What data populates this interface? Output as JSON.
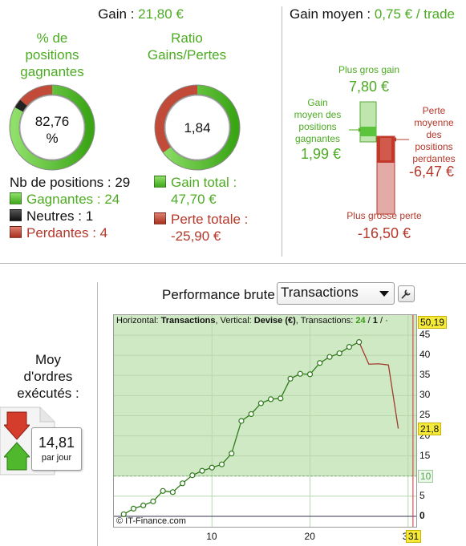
{
  "summary": {
    "gain_label": "Gain : ",
    "gain_value": "21,80 €",
    "avg_gain_label": "Gain moyen : ",
    "avg_gain_value": "0,75 € / trade"
  },
  "win_pct": {
    "title_lines": [
      "% de",
      "positions",
      "gagnantes"
    ],
    "value_lines": [
      "82,76",
      "%"
    ],
    "fraction": 0.8276,
    "neutral_fraction": 0.0345
  },
  "ratio": {
    "title_lines": [
      "Ratio",
      "Gains/Pertes"
    ],
    "value": "1,84",
    "gain_fraction": 0.648
  },
  "positions": {
    "count_label": "Nb de positions : 29",
    "winners": "Gagnantes : 24",
    "neutral": "Neutres : 1",
    "losers": "Perdantes : 4"
  },
  "totals": {
    "gain_label": "Gain total :",
    "gain_value": "47,70 €",
    "loss_label": "Perte totale :",
    "loss_value": "-25,90 €"
  },
  "bars": {
    "best_gain_label": "Plus gros gain",
    "best_gain_value": "7,80 €",
    "avg_win_lines": [
      "Gain",
      "moyen des",
      "positions",
      "gagnantes"
    ],
    "avg_win_value": "1,99 €",
    "avg_loss_lines": [
      "Perte",
      "moyenne",
      "des",
      "positions",
      "perdantes"
    ],
    "avg_loss_value": "-6,47 €",
    "worst_loss_label": "Plus grosse perte",
    "worst_loss_value": "-16,50 €"
  },
  "orders": {
    "title_lines": [
      "Moy",
      "d'ordres",
      "exécutés :"
    ],
    "value": "14,81",
    "unit": "par jour"
  },
  "performance": {
    "title": "Performance brute",
    "selected": "Transactions",
    "header_h": "Horizontal: ",
    "header_h_val": "Transactions",
    "header_v": ", Vertical: ",
    "header_v_val": "Devise (€)",
    "header_t": ", Transactions: ",
    "header_t_val": "24",
    "header_sep": " / ",
    "header_t_total": "1",
    "header_end": " / ·",
    "copyright": "© IT-Finance.com"
  },
  "chart_data": {
    "type": "line",
    "xlabel": "",
    "ylabel": "",
    "xlim": [
      0,
      31
    ],
    "ylim": [
      -3,
      50
    ],
    "x_ticks": [
      "10",
      "20",
      "30"
    ],
    "x_tick_values": [
      10,
      20,
      30
    ],
    "y_ticks": [
      "5",
      "10",
      "15",
      "20",
      "25",
      "30",
      "35",
      "40",
      "45"
    ],
    "y_tick_values": [
      5,
      10,
      15,
      20,
      25,
      30,
      35,
      40,
      45
    ],
    "y_zero_label": "0",
    "y_ref_label": "10",
    "y_ref": 10,
    "max_badge": "50,19",
    "last_badge": "21,8",
    "x_badge": "31",
    "x_marker": 30.5,
    "series": [
      {
        "x": [
          1,
          2,
          3,
          4,
          5,
          6,
          7,
          8,
          9,
          10,
          11,
          12,
          13,
          14,
          15,
          16,
          17,
          18,
          19,
          20,
          21,
          22,
          23,
          24,
          25
        ],
        "y": [
          0.5,
          1.9,
          2.7,
          3.7,
          6.3,
          6.0,
          8.2,
          10.2,
          11.3,
          12.1,
          12.9,
          15.6,
          23.7,
          25.4,
          28.1,
          29.1,
          29.3,
          34.2,
          35.4,
          35.3,
          38.1,
          39.6,
          40.5,
          42.1,
          43.3
        ]
      },
      {
        "x": [
          25,
          26,
          27,
          28,
          29
        ],
        "y": [
          43.3,
          37.8,
          37.9,
          37.6,
          21.8
        ]
      }
    ]
  }
}
